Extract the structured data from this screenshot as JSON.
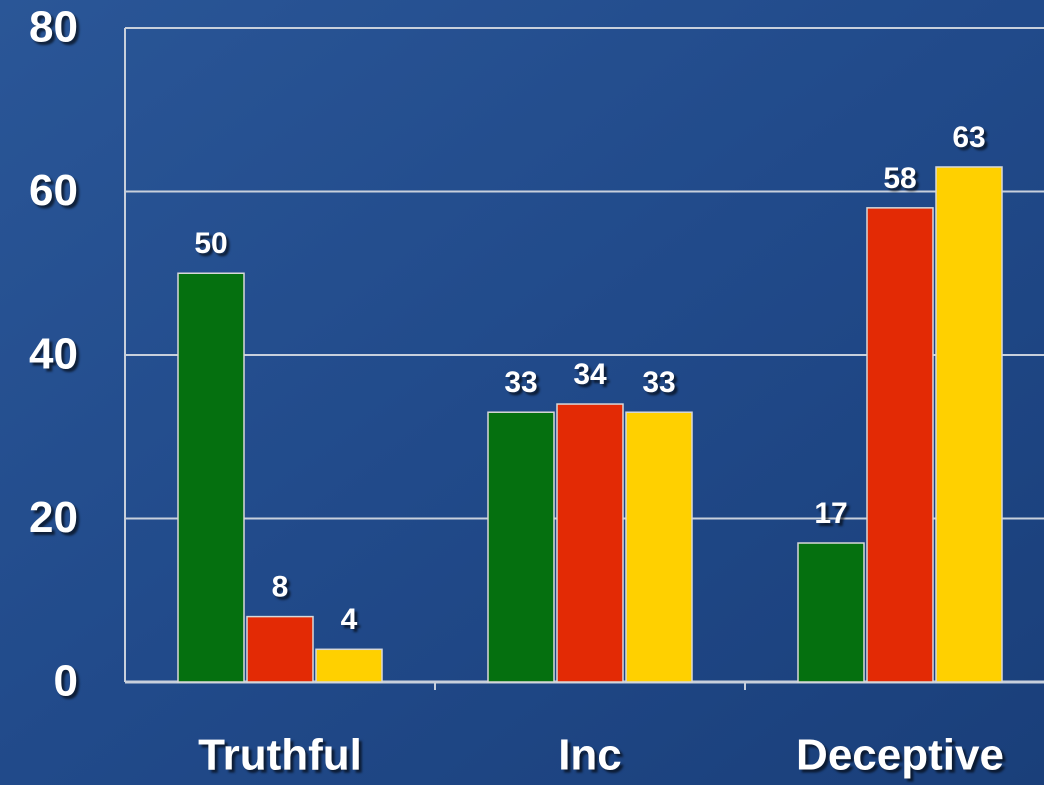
{
  "chart_data": {
    "type": "bar",
    "categories": [
      "Truthful",
      "Inc",
      "Deceptive"
    ],
    "series": [
      {
        "color": "#05700f",
        "values": [
          50,
          33,
          17
        ]
      },
      {
        "color": "#e32a05",
        "values": [
          8,
          34,
          58
        ]
      },
      {
        "color": "#ffd000",
        "values": [
          4,
          33,
          63
        ]
      }
    ],
    "ylim": [
      0,
      80
    ],
    "yticks": [
      0,
      20,
      40,
      60,
      80
    ],
    "grid": true
  }
}
